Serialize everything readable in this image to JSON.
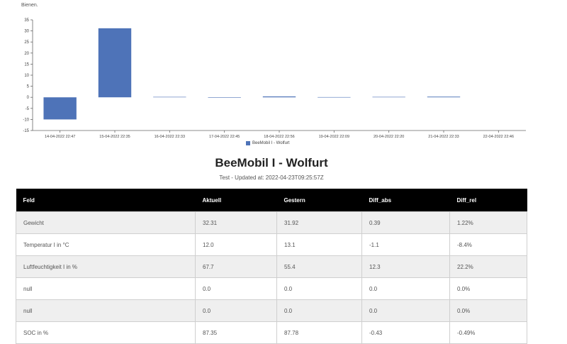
{
  "intro": {
    "text": "Bienen."
  },
  "chart_data": {
    "type": "bar",
    "categories": [
      "14-04-2022 22:47",
      "15-04-2022 22:35",
      "16-04-2022 22:33",
      "17-04-2022 22:45",
      "18-04-2022 22:56",
      "19-04-2022 22:09",
      "20-04-2022 22:20",
      "21-04-2022 22:33",
      "22-04-2022 22:46"
    ],
    "series": [
      {
        "name": "BeeMobil I - Wolfurt",
        "values": [
          -10,
          31.2,
          0.2,
          -0.2,
          0.4,
          0.1,
          0.2,
          0.3,
          0
        ],
        "color": "#4e73b8"
      }
    ],
    "ylim": [
      -15,
      35
    ],
    "yticks": [
      -15,
      -10,
      -5,
      0,
      5,
      10,
      15,
      20,
      25,
      30,
      35
    ],
    "grid": false,
    "legend": "bottom"
  },
  "header": {
    "title": "BeeMobil I - Wolfurt",
    "subtitle": "Test - Updated at: 2022-04-23T09:25:57Z"
  },
  "table": {
    "columns": [
      "Feld",
      "Aktuell",
      "Gestern",
      "Diff_abs",
      "Diff_rel"
    ],
    "rows": [
      [
        "Gewicht",
        "32.31",
        "31.92",
        "0.39",
        "1.22%"
      ],
      [
        "Temperatur I in °C",
        "12.0",
        "13.1",
        "-1.1",
        "-8.4%"
      ],
      [
        "Luftfeuchtigkeit I in %",
        "67.7",
        "55.4",
        "12.3",
        "22.2%"
      ],
      [
        "null",
        "0.0",
        "0.0",
        "0.0",
        "0.0%"
      ],
      [
        "null",
        "0.0",
        "0.0",
        "0.0",
        "0.0%"
      ],
      [
        "SOC in %",
        "87.35",
        "87.78",
        "-0.43",
        "-0.49%"
      ]
    ]
  }
}
